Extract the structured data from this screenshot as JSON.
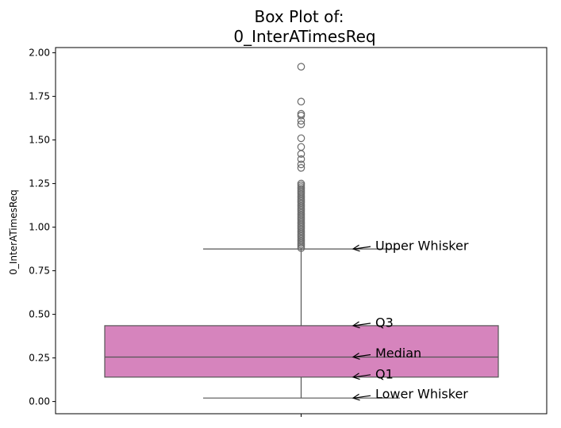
{
  "chart_data": {
    "type": "box",
    "title_line1": "Box Plot of:",
    "title_line2": "0_InterATimesReq",
    "ylabel": "0_InterATimesReq",
    "xlabel": "",
    "ylim": [
      -0.07,
      2.03
    ],
    "yticks": [
      0.0,
      0.25,
      0.5,
      0.75,
      1.0,
      1.25,
      1.5,
      1.75,
      2.0
    ],
    "ytick_labels": [
      "0.00",
      "0.25",
      "0.50",
      "0.75",
      "1.00",
      "1.25",
      "1.50",
      "1.75",
      "2.00"
    ],
    "grid": false,
    "box": {
      "lower_whisker": 0.02,
      "q1": 0.14,
      "median": 0.255,
      "q3": 0.435,
      "upper_whisker": 0.875,
      "fill_color": "#d684bd",
      "line_color": "#555555"
    },
    "outliers": [
      1.92,
      1.72,
      1.65,
      1.64,
      1.61,
      1.59,
      1.51,
      1.46,
      1.42,
      1.39,
      1.36,
      1.34,
      1.25,
      1.24,
      1.23,
      1.22,
      1.21,
      1.2,
      1.19,
      1.18,
      1.17,
      1.16,
      1.15,
      1.14,
      1.13,
      1.12,
      1.11,
      1.1,
      1.09,
      1.08,
      1.07,
      1.06,
      1.05,
      1.04,
      1.03,
      1.02,
      1.01,
      1.0,
      0.99,
      0.98,
      0.97,
      0.96,
      0.95,
      0.94,
      0.93,
      0.92,
      0.91,
      0.9,
      0.89,
      0.88
    ],
    "annotations": [
      {
        "label": "Upper Whisker",
        "target": 0.875,
        "text_y": 0.895
      },
      {
        "label": "Q3",
        "target": 0.435,
        "text_y": 0.455
      },
      {
        "label": "Median",
        "target": 0.255,
        "text_y": 0.28
      },
      {
        "label": "Q1",
        "target": 0.14,
        "text_y": 0.16
      },
      {
        "label": "Lower Whisker",
        "target": 0.02,
        "text_y": 0.045
      }
    ]
  }
}
